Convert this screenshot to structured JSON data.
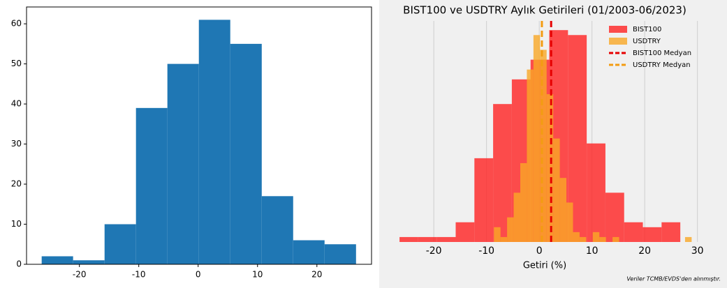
{
  "chart_data": [
    {
      "type": "histogram",
      "color": "#1f77b4",
      "bins": [
        -26.35,
        -21.06,
        -15.76,
        -10.47,
        -5.18,
        0.12,
        5.41,
        10.71,
        16.0,
        21.29,
        26.59
      ],
      "values": [
        2,
        1,
        10,
        39,
        50,
        61,
        55,
        17,
        6,
        5
      ],
      "xlim": [
        -28.9,
        29.2
      ],
      "ylim": [
        0,
        64.2
      ],
      "xticks": [
        -20,
        -10,
        0,
        10,
        20
      ],
      "yticks": [
        0,
        10,
        20,
        30,
        40,
        50,
        60
      ]
    },
    {
      "type": "overlay-histogram",
      "title": "BIST100 ve USDTRY Aylık Getirileri (01/2003-06/2023)",
      "x_label": "Getiri (%)",
      "note": "Veriler TCMB/EVDS'den alınmıştır.",
      "xlim": [
        -28.1,
        31.5
      ],
      "ylim": [
        0,
        46
      ],
      "xticks": [
        -20,
        -10,
        0,
        10,
        20,
        30
      ],
      "grid": true,
      "legend": "upper right",
      "series": [
        {
          "name": "BIST100",
          "color": "#ff2222",
          "bins": [
            -26.5,
            -22.95,
            -19.4,
            -15.85,
            -12.3,
            -8.75,
            -5.2,
            -1.65,
            1.9,
            5.45,
            9.0,
            12.55,
            16.1,
            19.65,
            23.2,
            26.75
          ],
          "values": [
            1,
            1,
            1,
            4,
            17,
            28,
            33,
            37,
            43,
            42,
            20,
            10,
            4,
            3,
            4
          ]
        },
        {
          "name": "USDTRY",
          "color": "#f9a825",
          "bins": [
            -8.6,
            -7.35,
            -6.1,
            -4.85,
            -3.6,
            -2.35,
            -1.1,
            0.15,
            1.4,
            2.65,
            3.9,
            5.15,
            6.4,
            7.65,
            8.9,
            10.15,
            11.4,
            12.65,
            13.9,
            15.15,
            16.4,
            17.65,
            18.9,
            20.15,
            21.4,
            22.65,
            23.9,
            25.15,
            26.4,
            27.65,
            28.9
          ],
          "values": [
            3,
            1,
            5,
            10,
            16,
            35,
            42,
            39,
            30,
            21,
            13,
            8,
            2,
            1,
            0,
            2,
            1,
            0,
            1,
            0,
            0,
            0,
            0,
            0,
            0,
            0,
            0,
            0,
            0,
            1
          ]
        }
      ],
      "medians": [
        {
          "name": "BIST100 Medyan",
          "color": "#e60000",
          "value": 2.25
        },
        {
          "name": "USDTRY Medyan",
          "color": "#f39c12",
          "value": 0.5
        }
      ]
    }
  ]
}
